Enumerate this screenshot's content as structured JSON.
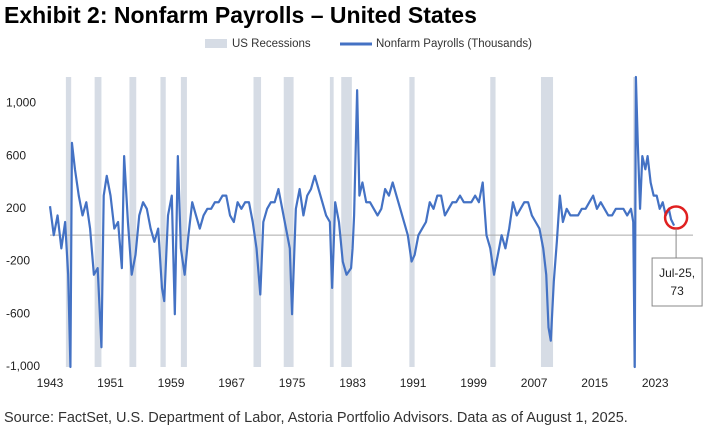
{
  "chart_data": {
    "type": "line",
    "title": "Exhibit 2: Nonfarm Payrolls – United States",
    "source": "Source: FactSet, U.S. Department of Labor, Astoria Portfolio Advisors. Data as of August 1, 2025.",
    "recession_label": "US Recessions",
    "recession_color": "#d6dce5",
    "recessions": [
      [
        1945.1,
        1945.8
      ],
      [
        1948.9,
        1949.8
      ],
      [
        1953.5,
        1954.4
      ],
      [
        1957.6,
        1958.3
      ],
      [
        1960.3,
        1961.1
      ],
      [
        1969.9,
        1970.9
      ],
      [
        1973.9,
        1975.2
      ],
      [
        1980.0,
        1980.5
      ],
      [
        1981.5,
        1982.9
      ],
      [
        1990.5,
        1991.2
      ],
      [
        2001.2,
        2001.9
      ],
      [
        2007.9,
        2009.5
      ],
      [
        2020.1,
        2020.3
      ]
    ],
    "x": [
      1943.0,
      1943.5,
      1944.0,
      1944.5,
      1945.0,
      1945.4,
      1945.7,
      1945.9,
      1946.3,
      1946.8,
      1947.3,
      1947.8,
      1948.3,
      1948.8,
      1949.3,
      1949.8,
      1950.1,
      1950.5,
      1951.0,
      1951.5,
      1952.0,
      1952.5,
      1952.8,
      1953.3,
      1953.8,
      1954.3,
      1954.8,
      1955.3,
      1955.8,
      1956.3,
      1956.8,
      1957.3,
      1957.8,
      1958.1,
      1958.6,
      1959.1,
      1959.5,
      1959.9,
      1960.3,
      1960.8,
      1961.3,
      1961.8,
      1962.3,
      1962.8,
      1963.3,
      1963.8,
      1964.3,
      1964.8,
      1965.3,
      1965.8,
      1966.3,
      1966.8,
      1967.3,
      1967.8,
      1968.3,
      1968.8,
      1969.3,
      1969.8,
      1970.3,
      1970.8,
      1971.2,
      1971.7,
      1972.2,
      1972.7,
      1973.2,
      1973.7,
      1974.2,
      1974.7,
      1975.0,
      1975.5,
      1976.0,
      1976.5,
      1977.0,
      1977.5,
      1978.0,
      1978.5,
      1979.0,
      1979.5,
      1980.0,
      1980.3,
      1980.7,
      1981.2,
      1981.7,
      1982.2,
      1982.8,
      1983.0,
      1983.2,
      1983.6,
      1983.9,
      1984.3,
      1984.8,
      1985.3,
      1985.8,
      1986.3,
      1986.8,
      1987.3,
      1987.8,
      1988.3,
      1988.8,
      1989.3,
      1989.8,
      1990.3,
      1990.8,
      1991.2,
      1991.7,
      1992.2,
      1992.7,
      1993.2,
      1993.7,
      1994.2,
      1994.7,
      1995.2,
      1995.7,
      1996.2,
      1996.7,
      1997.2,
      1997.7,
      1998.2,
      1998.7,
      1999.2,
      1999.7,
      2000.2,
      2000.7,
      2001.2,
      2001.7,
      2002.2,
      2002.7,
      2003.2,
      2003.7,
      2004.2,
      2004.7,
      2005.2,
      2005.7,
      2006.2,
      2006.7,
      2007.2,
      2007.7,
      2008.2,
      2008.6,
      2008.9,
      2009.2,
      2009.6,
      2010.0,
      2010.4,
      2010.8,
      2011.3,
      2011.8,
      2012.3,
      2012.8,
      2013.3,
      2013.8,
      2014.3,
      2014.8,
      2015.3,
      2015.8,
      2016.3,
      2016.8,
      2017.3,
      2017.8,
      2018.3,
      2018.8,
      2019.3,
      2019.8,
      2020.1,
      2020.3,
      2020.45,
      2020.7,
      2021.0,
      2021.3,
      2021.7,
      2022.0,
      2022.4,
      2022.8,
      2023.2,
      2023.6,
      2024.0,
      2024.4,
      2024.8,
      2025.1,
      2025.5
    ],
    "series": [
      {
        "name": "Nonfarm Payrolls (Thousands)",
        "color": "#4472c4",
        "values": [
          220,
          0,
          150,
          -100,
          100,
          -300,
          -1000,
          700,
          500,
          300,
          150,
          250,
          50,
          -300,
          -250,
          -850,
          300,
          450,
          300,
          50,
          100,
          -250,
          600,
          100,
          -300,
          -150,
          150,
          250,
          200,
          50,
          -50,
          50,
          -400,
          -500,
          150,
          300,
          -600,
          600,
          -100,
          -300,
          0,
          250,
          150,
          50,
          150,
          200,
          200,
          250,
          250,
          300,
          300,
          150,
          100,
          250,
          200,
          250,
          250,
          100,
          -100,
          -450,
          100,
          200,
          250,
          250,
          350,
          200,
          50,
          -100,
          -600,
          200,
          350,
          150,
          300,
          350,
          450,
          350,
          250,
          150,
          100,
          -400,
          250,
          100,
          -200,
          -300,
          -250,
          -100,
          150,
          1100,
          300,
          400,
          250,
          250,
          200,
          150,
          200,
          350,
          300,
          400,
          300,
          200,
          100,
          0,
          -200,
          -150,
          0,
          50,
          100,
          250,
          200,
          300,
          300,
          150,
          200,
          250,
          250,
          300,
          250,
          250,
          250,
          300,
          250,
          400,
          0,
          -100,
          -300,
          -150,
          0,
          -100,
          50,
          250,
          150,
          200,
          250,
          250,
          150,
          100,
          50,
          -100,
          -300,
          -700,
          -800,
          -350,
          -50,
          300,
          100,
          200,
          150,
          150,
          150,
          200,
          200,
          250,
          300,
          200,
          250,
          200,
          150,
          150,
          200,
          200,
          200,
          150,
          200,
          100,
          -1000,
          1200,
          700,
          200,
          600,
          500,
          600,
          400,
          300,
          300,
          200,
          250,
          150,
          200,
          120,
          73
        ]
      }
    ],
    "annotation": {
      "text": "Jul-25,",
      "value": 73
    },
    "xlim": [
      1943,
      2028
    ],
    "xticks": [
      1943,
      1951,
      1959,
      1967,
      1975,
      1983,
      1991,
      1999,
      2007,
      2015,
      2023
    ],
    "ylim": [
      -1000,
      1200
    ],
    "yticks": [
      {
        "value": -1000,
        "label": "-1,000"
      },
      -600,
      -200,
      200,
      600,
      {
        "value": 1000,
        "label": "1,000"
      }
    ]
  }
}
